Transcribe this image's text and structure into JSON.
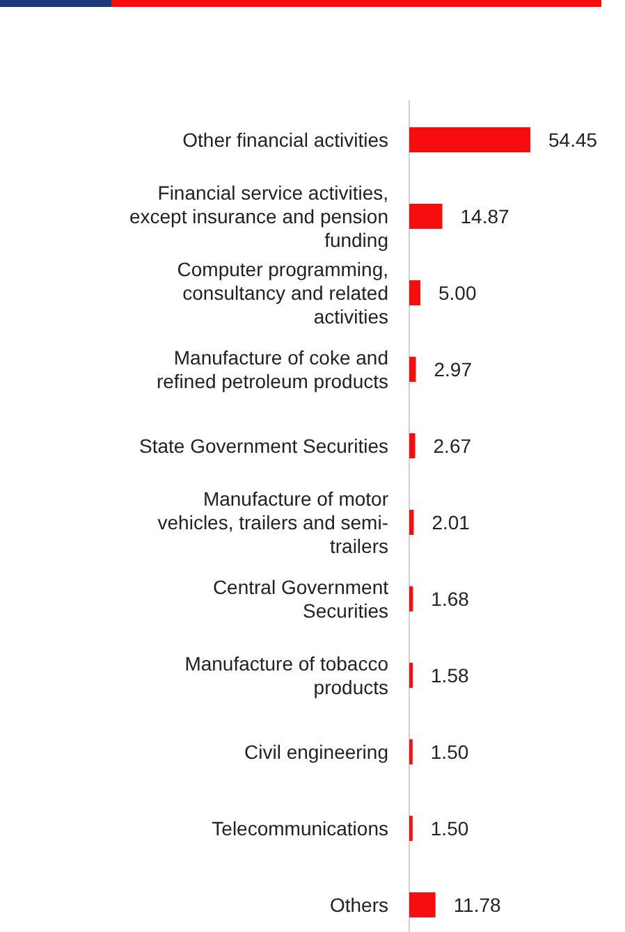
{
  "chart_data": {
    "type": "bar",
    "orientation": "horizontal",
    "categories": [
      "Other financial activities",
      "Financial service activities, except insurance and pension funding",
      "Computer programming, consultancy and related activities",
      "Manufacture of coke and refined petroleum products",
      "State Government Securities",
      "Manufacture of motor vehicles, trailers and semi-trailers",
      "Central Government Securities",
      "Manufacture of tobacco products",
      "Civil engineering",
      "Telecommunications",
      "Others"
    ],
    "values": [
      54.45,
      14.87,
      5.0,
      2.97,
      2.67,
      2.01,
      1.68,
      1.58,
      1.5,
      1.5,
      11.78
    ],
    "value_labels": [
      "54.45",
      "14.87",
      "5.00",
      "2.97",
      "2.67",
      "2.01",
      "1.68",
      "1.58",
      "1.50",
      "1.50",
      "11.78"
    ],
    "color": "#f70d0d"
  }
}
